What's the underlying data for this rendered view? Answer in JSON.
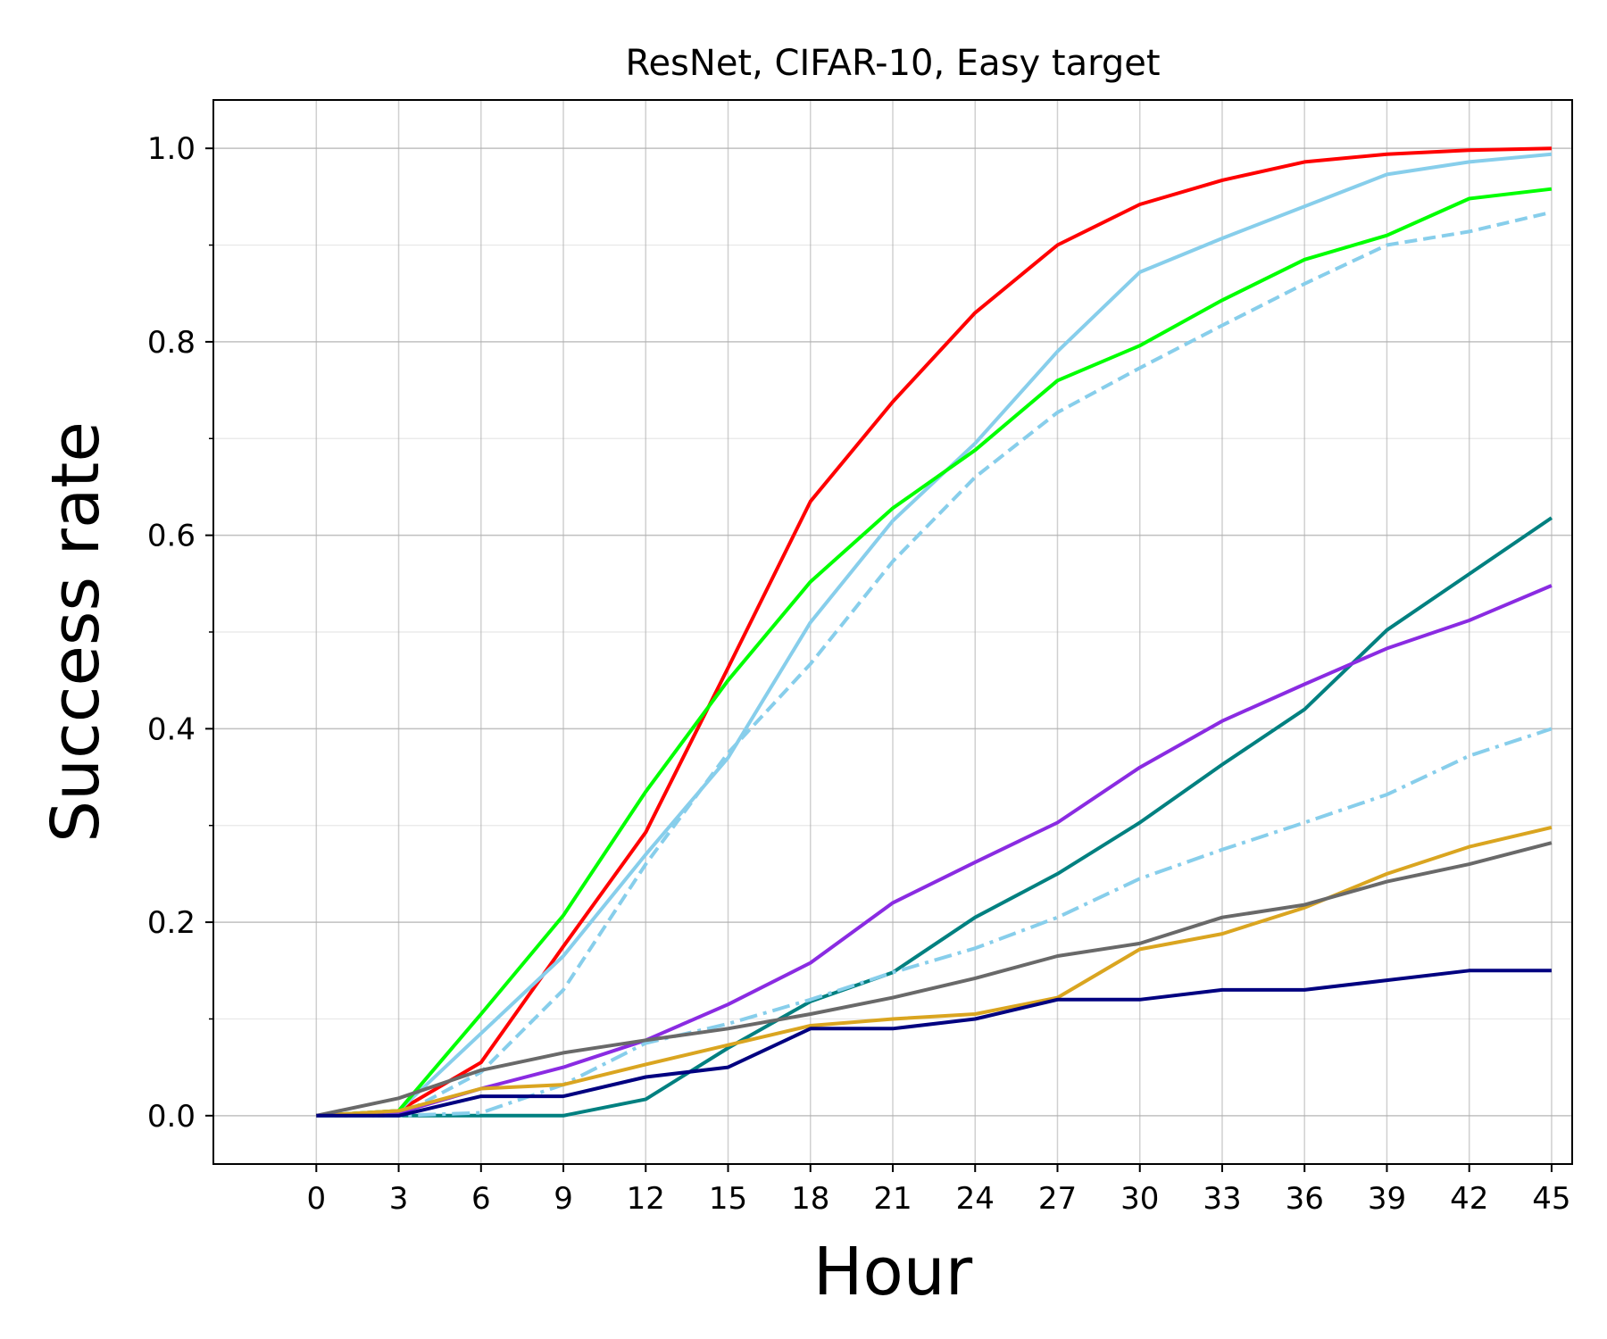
{
  "chart_data": {
    "type": "line",
    "title": "ResNet, CIFAR-10, Easy target",
    "xlabel": "Hour",
    "ylabel": "Success rate",
    "xlim": [
      -3.75,
      45.75
    ],
    "ylim": [
      -0.05,
      1.05
    ],
    "x_ticks": [
      0,
      3,
      6,
      9,
      12,
      15,
      18,
      21,
      24,
      27,
      30,
      33,
      36,
      39,
      42,
      45
    ],
    "y_ticks": [
      0.0,
      0.2,
      0.4,
      0.6,
      0.8,
      1.0
    ],
    "y_tick_labels": [
      "0.0",
      "0.2",
      "0.4",
      "0.6",
      "0.8",
      "1.0"
    ],
    "y_minor_ticks": [
      0.1,
      0.3,
      0.5,
      0.7,
      0.9
    ],
    "grid": true,
    "legend": "none",
    "x": [
      0,
      3,
      6,
      9,
      12,
      15,
      18,
      21,
      24,
      27,
      30,
      33,
      36,
      39,
      42,
      45
    ],
    "series": [
      {
        "color": "#ff0000",
        "dash": "solid",
        "values": [
          0.0,
          0.005,
          0.055,
          0.175,
          0.293,
          0.463,
          0.635,
          0.738,
          0.83,
          0.9,
          0.942,
          0.967,
          0.986,
          0.994,
          0.998,
          1.0
        ]
      },
      {
        "color": "#87ceeb",
        "dash": "solid",
        "values": [
          0.0,
          0.005,
          0.085,
          0.165,
          0.27,
          0.37,
          0.51,
          0.615,
          0.695,
          0.79,
          0.872,
          0.907,
          0.94,
          0.973,
          0.986,
          0.994
        ]
      },
      {
        "color": "#00ff00",
        "dash": "solid",
        "values": [
          0.0,
          0.005,
          0.105,
          0.207,
          0.335,
          0.45,
          0.552,
          0.628,
          0.688,
          0.76,
          0.796,
          0.843,
          0.885,
          0.91,
          0.948,
          0.958
        ]
      },
      {
        "color": "#87ceeb",
        "dash": "dashed",
        "values": [
          0.0,
          0.0,
          0.045,
          0.13,
          0.26,
          0.375,
          0.467,
          0.573,
          0.66,
          0.727,
          0.773,
          0.817,
          0.86,
          0.9,
          0.914,
          0.934
        ]
      },
      {
        "color": "#008080",
        "dash": "solid",
        "values": [
          0.0,
          0.0,
          0.0,
          0.0,
          0.017,
          0.07,
          0.118,
          0.148,
          0.205,
          0.25,
          0.303,
          0.363,
          0.42,
          0.502,
          0.56,
          0.618
        ]
      },
      {
        "color": "#8a2be2",
        "dash": "solid",
        "values": [
          0.0,
          0.003,
          0.028,
          0.05,
          0.078,
          0.115,
          0.158,
          0.22,
          0.262,
          0.303,
          0.36,
          0.408,
          0.446,
          0.483,
          0.512,
          0.548
        ]
      },
      {
        "color": "#87ceeb",
        "dash": "dashdot",
        "values": [
          0.0,
          0.0,
          0.003,
          0.032,
          0.075,
          0.095,
          0.12,
          0.148,
          0.173,
          0.205,
          0.245,
          0.275,
          0.303,
          0.332,
          0.372,
          0.4
        ]
      },
      {
        "color": "#daa520",
        "dash": "solid",
        "values": [
          0.0,
          0.005,
          0.028,
          0.032,
          0.053,
          0.073,
          0.093,
          0.1,
          0.105,
          0.122,
          0.172,
          0.188,
          0.215,
          0.25,
          0.278,
          0.298
        ]
      },
      {
        "color": "#696969",
        "dash": "solid",
        "values": [
          0.0,
          0.018,
          0.047,
          0.065,
          0.078,
          0.09,
          0.105,
          0.122,
          0.142,
          0.165,
          0.178,
          0.205,
          0.218,
          0.242,
          0.26,
          0.282
        ]
      },
      {
        "color": "#000080",
        "dash": "solid",
        "values": [
          0.0,
          0.0,
          0.02,
          0.02,
          0.04,
          0.05,
          0.09,
          0.09,
          0.1,
          0.12,
          0.12,
          0.13,
          0.13,
          0.14,
          0.15,
          0.15
        ]
      }
    ]
  }
}
